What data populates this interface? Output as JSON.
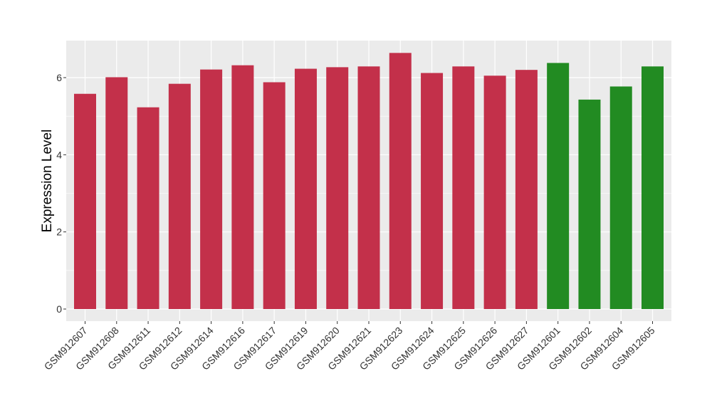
{
  "chart_data": {
    "type": "bar",
    "ylabel": "Expression Level",
    "xlabel": "",
    "ylim": [
      -0.3,
      7.0
    ],
    "yticks": [
      0,
      2,
      4,
      6
    ],
    "grid": true,
    "legend": "none",
    "panel_color": "#ebebeb",
    "gridline_color": "#ffffff",
    "categories": [
      "GSM912607",
      "GSM912608",
      "GSM912611",
      "GSM912612",
      "GSM912614",
      "GSM912616",
      "GSM912617",
      "GSM912619",
      "GSM912620",
      "GSM912621",
      "GSM912623",
      "GSM912624",
      "GSM912625",
      "GSM912626",
      "GSM912627",
      "GSM912601",
      "GSM912602",
      "GSM912604",
      "GSM912605"
    ],
    "values": [
      5.58,
      6.01,
      5.23,
      5.84,
      6.21,
      6.32,
      5.88,
      6.23,
      6.27,
      6.29,
      6.64,
      6.12,
      6.29,
      6.05,
      6.2,
      6.38,
      5.43,
      5.77,
      6.29
    ],
    "groups": [
      "red",
      "red",
      "red",
      "red",
      "red",
      "red",
      "red",
      "red",
      "red",
      "red",
      "red",
      "red",
      "red",
      "red",
      "red",
      "green",
      "green",
      "green",
      "green"
    ],
    "colors": {
      "red": "#c3304a",
      "green": "#228b22"
    }
  }
}
